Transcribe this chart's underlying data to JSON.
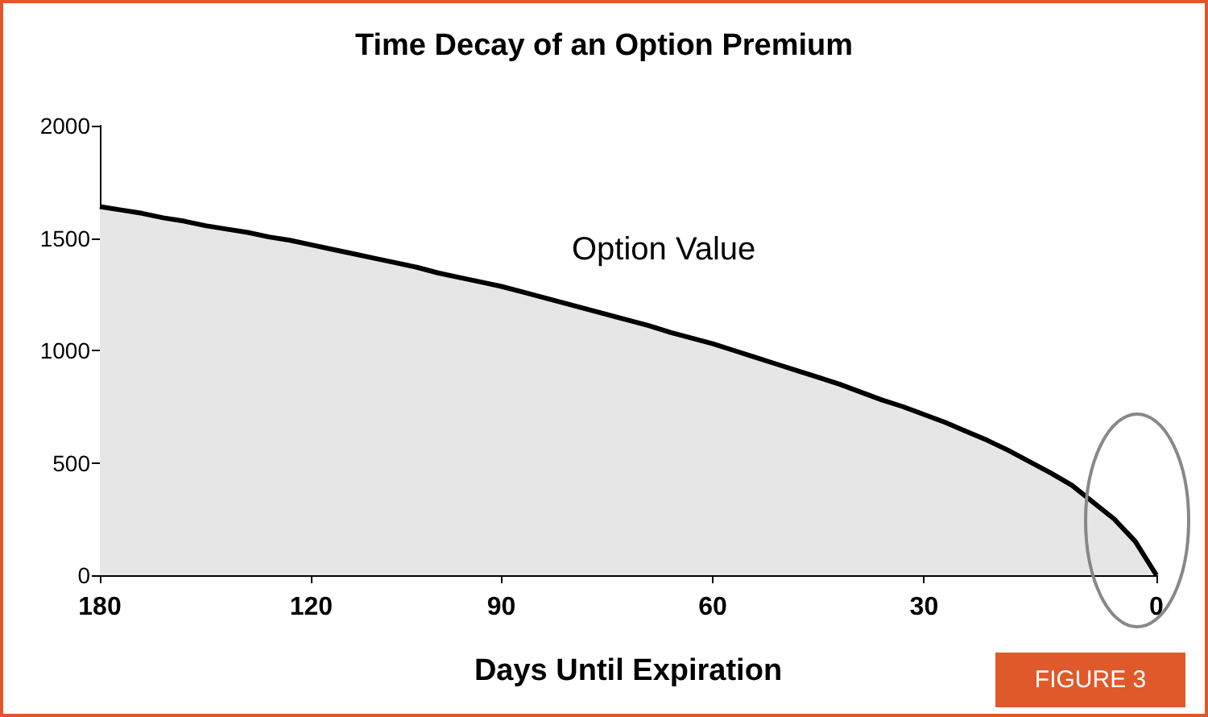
{
  "chart_data": {
    "type": "area",
    "title": "Time Decay of an Option Premium",
    "xlabel": "Days Until Expiration",
    "categories": [
      "180",
      null,
      null,
      null,
      null,
      null,
      null,
      null,
      null,
      null,
      "120",
      null,
      null,
      null,
      null,
      null,
      null,
      null,
      null,
      "90",
      null,
      null,
      null,
      null,
      null,
      null,
      null,
      null,
      null,
      "60",
      null,
      null,
      null,
      null,
      null,
      null,
      null,
      null,
      null,
      "30",
      null,
      null,
      null,
      null,
      null,
      null,
      null,
      null,
      null,
      null,
      "0"
    ],
    "series": [
      {
        "color": "#000000",
        "values": [
          1640,
          1625,
          1610,
          1590,
          1575,
          1555,
          1540,
          1525,
          1505,
          1490,
          1470,
          1450,
          1430,
          1410,
          1390,
          1370,
          1345,
          1325,
          1305,
          1285,
          1260,
          1235,
          1210,
          1185,
          1160,
          1135,
          1110,
          1080,
          1055,
          1030,
          1000,
          970,
          940,
          910,
          880,
          850,
          815,
          780,
          750,
          715,
          680,
          640,
          600,
          555,
          505,
          455,
          400,
          325,
          250,
          150,
          0
        ]
      }
    ],
    "ylim": [
      0,
      2000
    ],
    "yticks": [
      0,
      500,
      1000,
      1500,
      2000
    ],
    "marker": "none",
    "line_style": "solid",
    "annotations": [
      "Option Value",
      "FIGURE 3"
    ]
  }
}
